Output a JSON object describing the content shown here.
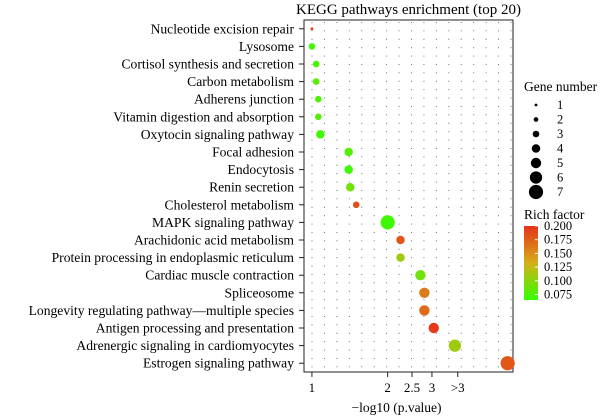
{
  "chart_data": {
    "type": "scatter",
    "title": "KEGG pathways enrichment (top 20)",
    "xlabel": "−log10 (p.value)",
    "x_scale": "log",
    "xlim": [
      0.93,
      6.3
    ],
    "x_ticks": [
      {
        "value": 1,
        "label": "1"
      },
      {
        "value": 2,
        "label": "2"
      },
      {
        "value": 2.5,
        "label": "2.5"
      },
      {
        "value": 3,
        "label": "3"
      },
      {
        "value": 3.8,
        "label": ">3"
      }
    ],
    "categories": [
      "Nucleotide excision repair",
      "Lysosome",
      "Cortisol synthesis and secretion",
      "Carbon metabolism",
      "Adherens junction",
      "Vitamin digestion and absorption",
      "Oxytocin signaling pathway",
      "Focal adhesion",
      "Endocytosis",
      "Renin secretion",
      "Cholesterol metabolism",
      "MAPK signaling pathway",
      "Arachidonic acid metabolism",
      "Protein processing in endoplasmic reticulum",
      "Cardiac muscle contraction",
      "Spliceosome",
      "Longevity regulating pathway—multiple species",
      "Antigen processing and presentation",
      "Adrenergic signaling in cardiomyocytes",
      "Estrogen signaling pathway"
    ],
    "points": [
      {
        "x": 1.0,
        "gene_number": 1,
        "rich_factor": 0.2
      },
      {
        "x": 1.0,
        "gene_number": 3,
        "rich_factor": 0.07
      },
      {
        "x": 1.04,
        "gene_number": 3,
        "rich_factor": 0.075
      },
      {
        "x": 1.04,
        "gene_number": 3,
        "rich_factor": 0.08
      },
      {
        "x": 1.06,
        "gene_number": 3,
        "rich_factor": 0.075
      },
      {
        "x": 1.06,
        "gene_number": 3,
        "rich_factor": 0.08
      },
      {
        "x": 1.08,
        "gene_number": 4,
        "rich_factor": 0.07
      },
      {
        "x": 1.4,
        "gene_number": 4,
        "rich_factor": 0.08
      },
      {
        "x": 1.4,
        "gene_number": 4,
        "rich_factor": 0.07
      },
      {
        "x": 1.42,
        "gene_number": 4,
        "rich_factor": 0.09
      },
      {
        "x": 1.5,
        "gene_number": 3,
        "rich_factor": 0.185
      },
      {
        "x": 2.0,
        "gene_number": 7,
        "rich_factor": 0.07
      },
      {
        "x": 2.25,
        "gene_number": 4,
        "rich_factor": 0.18
      },
      {
        "x": 2.25,
        "gene_number": 4,
        "rich_factor": 0.11
      },
      {
        "x": 2.7,
        "gene_number": 5,
        "rich_factor": 0.09
      },
      {
        "x": 2.8,
        "gene_number": 5,
        "rich_factor": 0.16
      },
      {
        "x": 2.8,
        "gene_number": 5,
        "rich_factor": 0.17
      },
      {
        "x": 3.05,
        "gene_number": 5,
        "rich_factor": 0.195
      },
      {
        "x": 3.7,
        "gene_number": 6,
        "rich_factor": 0.11
      },
      {
        "x": 6.0,
        "gene_number": 7,
        "rich_factor": 0.18
      }
    ],
    "legend_size": {
      "title": "Gene number",
      "values": [
        "1",
        "2",
        "3",
        "4",
        "5",
        "6",
        "7"
      ]
    },
    "legend_color": {
      "title": "Rich factor",
      "range": [
        0.065,
        0.2
      ],
      "ticks": [
        "0.200",
        "0.175",
        "0.150",
        "0.125",
        "0.100",
        "0.075"
      ],
      "low": "#33ff00",
      "high": "#e8301a"
    },
    "grid": true
  }
}
